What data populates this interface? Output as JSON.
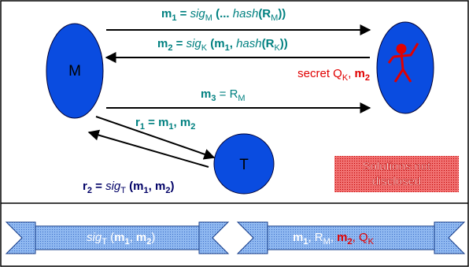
{
  "nodes": [
    {
      "label": "M"
    },
    {
      "label": "T"
    }
  ],
  "messages": {
    "m1": [
      "m",
      "1",
      "  =  ",
      "sig",
      "M",
      " (... ",
      "hash",
      "(R",
      "M",
      "))"
    ],
    "m2": [
      "m",
      "2",
      "  =  ",
      "sig",
      "K",
      " (",
      "m",
      "1",
      ", ",
      "hash",
      "(R",
      "K",
      "))"
    ],
    "secret": [
      "secret  Q",
      "K",
      ", ",
      "m",
      "2"
    ],
    "m3": [
      "m",
      "3",
      "  =  R",
      "M"
    ],
    "r1": [
      "r",
      "1",
      " = ",
      "m",
      "1",
      ", ",
      "m",
      "2"
    ],
    "r2": [
      "r",
      "2",
      " = ",
      "sig",
      "T",
      " (",
      "m",
      "1",
      ", ",
      "m",
      "2",
      ")"
    ]
  },
  "stamp": [
    "Solutions not",
    "disclosed"
  ],
  "banners": {
    "left": [
      "sig",
      "T",
      " (",
      "m",
      "1",
      ", ",
      "m",
      "2",
      ")"
    ],
    "right": [
      "m",
      "1",
      ", R",
      "M",
      ", ",
      "m",
      "2",
      ", Q",
      "K"
    ]
  }
}
